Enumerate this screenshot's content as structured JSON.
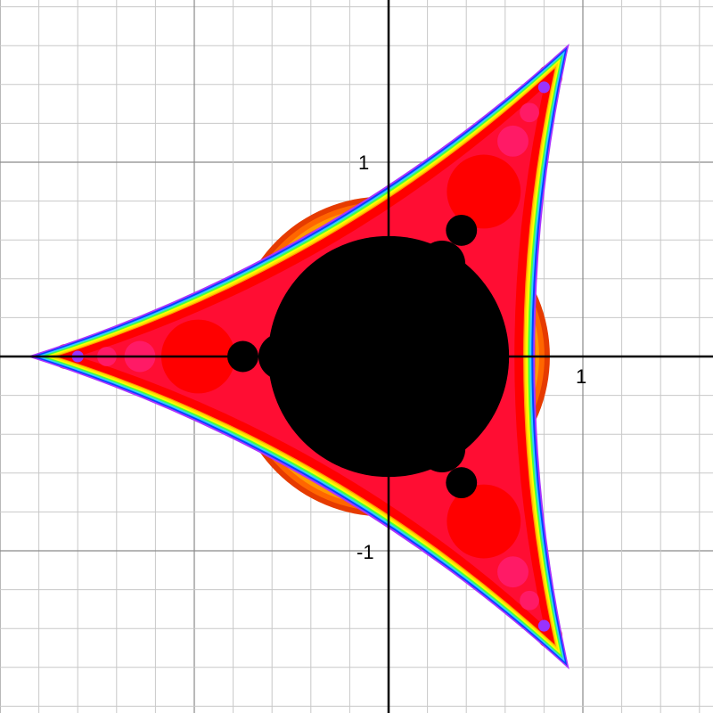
{
  "graph": {
    "axes": {
      "x_tick_label": "1",
      "y_tick_label_pos": "1",
      "y_tick_label_neg": "-1"
    },
    "view": {
      "xmin": -2.0,
      "xmax": 1.67,
      "ymin": -1.83,
      "ymax": 1.83,
      "grid": true,
      "minor_step": 0.2,
      "major_step": 1.0
    },
    "fractal": {
      "symmetry": "3-fold",
      "tip_directions_deg": [
        60,
        180,
        300
      ],
      "palette": {
        "interior": "#000000",
        "body": "#ff0000",
        "bulb_accent": "#ff1a66",
        "filament": "#9933ff",
        "rainbow_bands": [
          "#e63b00",
          "#ff6600",
          "#ff9900",
          "#ffdd00",
          "#ffff00",
          "#44ff44",
          "#33ccff",
          "#0044ff",
          "#aa33ff"
        ]
      }
    }
  }
}
